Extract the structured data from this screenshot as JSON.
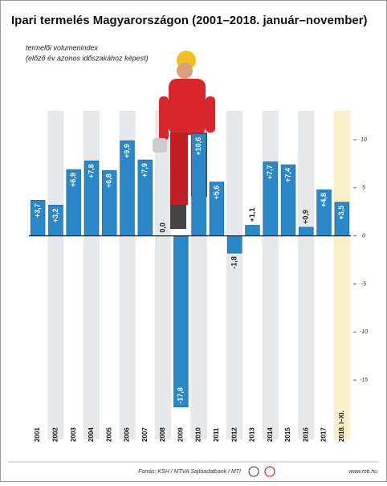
{
  "chart_data": {
    "type": "bar",
    "title": "Ipari termelés Magyarországon (2001–2018. január–november)",
    "subtitle": "termelői volumenindex",
    "subtitle2": "(előző év azonos időszakához képest)",
    "categories": [
      "2001",
      "2002",
      "2003",
      "2004",
      "2005",
      "2006",
      "2007",
      "2008",
      "2009",
      "2010",
      "2011",
      "2012",
      "2013",
      "2014",
      "2015",
      "2016",
      "2017",
      "2018. I–XI."
    ],
    "values": [
      3.7,
      3.2,
      6.9,
      7.8,
      6.8,
      9.9,
      7.9,
      0.0,
      -17.8,
      10.6,
      5.6,
      -1.8,
      1.1,
      7.7,
      7.4,
      0.9,
      4.8,
      3.5
    ],
    "value_labels": [
      "+3,7",
      "+3,2",
      "+6,9",
      "+7,8",
      "+6,8",
      "+9,9",
      "+7,9",
      "0,0",
      "-17,8",
      "+10,6",
      "+5,6",
      "-1,8",
      "+1,1",
      "+7,7",
      "+7,4",
      "+0,9",
      "+4,8",
      "+3,5"
    ],
    "color": "#2a88c8",
    "ylim": [
      -19.5,
      13
    ],
    "yticks": [
      10,
      5,
      0,
      -5,
      -10,
      -15
    ],
    "source": "Forrás: KSH / MTVA Sajtóadatbank / MTI",
    "website": "www.mti.hu"
  }
}
